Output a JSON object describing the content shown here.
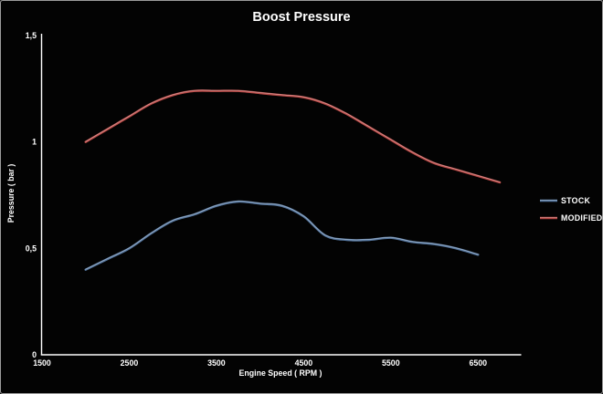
{
  "window": {
    "background": "#030303",
    "border_color": "#9c9c9c"
  },
  "chart_data": {
    "type": "line",
    "title": "Boost Pressure",
    "xlabel": "Engine Speed ( RPM )",
    "ylabel": "Pressure ( bar )",
    "xlim": [
      1500,
      7000
    ],
    "ylim": [
      0,
      1.5
    ],
    "grid": false,
    "plot_background": "#000000",
    "axis_color": "#ffffff",
    "text_color": "#ffffff",
    "legend_position": "right",
    "x_ticks": [
      {
        "v": 1500,
        "label": "1500"
      },
      {
        "v": 2500,
        "label": "2500"
      },
      {
        "v": 3500,
        "label": "3500"
      },
      {
        "v": 4500,
        "label": "4500"
      },
      {
        "v": 5500,
        "label": "5500"
      },
      {
        "v": 6500,
        "label": "6500"
      }
    ],
    "y_ticks": [
      {
        "v": 0,
        "label": "0"
      },
      {
        "v": 0.5,
        "label": "0,5"
      },
      {
        "v": 1,
        "label": "1"
      },
      {
        "v": 1.5,
        "label": "1,5"
      }
    ],
    "series": [
      {
        "name": "STOCK",
        "color": "#56779f",
        "x": [
          2000,
          2250,
          2500,
          2750,
          3000,
          3250,
          3500,
          3750,
          4000,
          4250,
          4500,
          4750,
          5000,
          5250,
          5500,
          5750,
          6000,
          6250,
          6500
        ],
        "values": [
          0.4,
          0.45,
          0.5,
          0.57,
          0.63,
          0.66,
          0.7,
          0.72,
          0.71,
          0.7,
          0.65,
          0.56,
          0.54,
          0.54,
          0.55,
          0.53,
          0.52,
          0.5,
          0.47
        ]
      },
      {
        "name": "MODIFIED",
        "color": "#b94a46",
        "x": [
          2000,
          2250,
          2500,
          2750,
          3000,
          3250,
          3500,
          3750,
          4000,
          4250,
          4500,
          4750,
          5000,
          5250,
          5500,
          5750,
          6000,
          6250,
          6500,
          6750
        ],
        "values": [
          1.0,
          1.06,
          1.12,
          1.18,
          1.22,
          1.24,
          1.24,
          1.24,
          1.23,
          1.22,
          1.21,
          1.18,
          1.13,
          1.07,
          1.01,
          0.95,
          0.9,
          0.87,
          0.84,
          0.81
        ]
      }
    ]
  }
}
